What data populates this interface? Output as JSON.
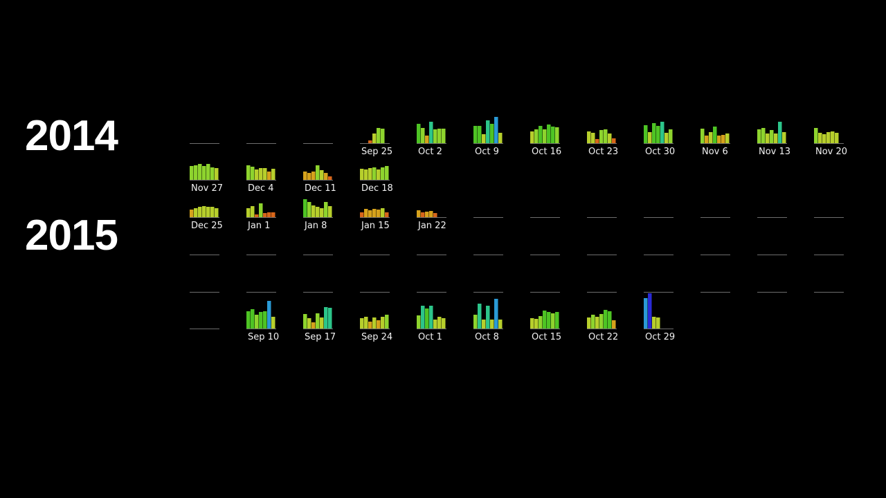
{
  "years": [
    {
      "label": "2014"
    },
    {
      "label": "2015"
    }
  ],
  "chart_data": {
    "type": "bar",
    "description_of_mark": "small multiples — one mini bar chart of daily values per week",
    "colors": {
      "orange": "#d8661a",
      "amber": "#d6a21c",
      "yellow_green": "#b7cf2c",
      "light_green": "#8ed42e",
      "green": "#4ec424",
      "teal": "#2cc58a",
      "sky": "#2a9ad6",
      "blue": "#2a2ad6",
      "baseline": "#6e6e6e"
    },
    "rows": [
      {
        "cells": [
          {
            "label": "",
            "values": []
          },
          {
            "label": "",
            "values": []
          },
          {
            "label": "",
            "values": []
          },
          {
            "label": "Sep 25",
            "values": [
              0,
              0,
              4,
              14,
              22,
              21
            ]
          },
          {
            "label": "Oct 2",
            "values": [
              28,
              22,
              11,
              31,
              20,
              21,
              21
            ]
          },
          {
            "label": "Oct 9",
            "values": [
              25,
              25,
              13,
              33,
              28,
              38,
              15
            ]
          },
          {
            "label": "Oct 16",
            "values": [
              17,
              20,
              25,
              20,
              27,
              24,
              23
            ]
          },
          {
            "label": "Oct 23",
            "values": [
              17,
              15,
              6,
              19,
              20,
              14,
              7
            ]
          },
          {
            "label": "Oct 30",
            "values": [
              26,
              16,
              29,
              25,
              31,
              15,
              20
            ]
          },
          {
            "label": "Nov 6",
            "values": [
              21,
              11,
              16,
              24,
              11,
              12,
              14
            ]
          },
          {
            "label": "Nov 13",
            "values": [
              20,
              22,
              14,
              19,
              14,
              31,
              16
            ]
          },
          {
            "label": "Nov 20",
            "values": [
              22,
              15,
              13,
              16,
              17,
              15,
              0
            ]
          }
        ]
      },
      {
        "cells": [
          {
            "label": "Nov 27",
            "values": [
              20,
              21,
              23,
              20,
              23,
              18,
              17
            ]
          },
          {
            "label": "Dec 4",
            "values": [
              21,
              19,
              15,
              17,
              17,
              12,
              16
            ]
          },
          {
            "label": "Dec 11",
            "values": [
              12,
              10,
              12,
              21,
              14,
              10,
              5
            ]
          },
          {
            "label": "Dec 18",
            "values": [
              16,
              15,
              17,
              18,
              15,
              18,
              20
            ]
          }
        ]
      },
      {
        "cells": [
          {
            "label": "Dec 25",
            "values": [
              11,
              13,
              15,
              16,
              15,
              15,
              13
            ]
          },
          {
            "label": "Jan 1",
            "values": [
              13,
              16,
              4,
              20,
              6,
              7,
              7
            ]
          },
          {
            "label": "Jan 8",
            "values": [
              26,
              22,
              17,
              15,
              13,
              22,
              16
            ]
          },
          {
            "label": "Jan 15",
            "values": [
              7,
              12,
              10,
              12,
              11,
              13,
              7
            ]
          },
          {
            "label": "Jan 22",
            "values": [
              10,
              7,
              8,
              9,
              6,
              0,
              0
            ]
          },
          {
            "label": "",
            "values": []
          },
          {
            "label": "",
            "values": []
          },
          {
            "label": "",
            "values": []
          },
          {
            "label": "",
            "values": []
          },
          {
            "label": "",
            "values": []
          },
          {
            "label": "",
            "values": []
          },
          {
            "label": "",
            "values": []
          }
        ]
      },
      {
        "cells": [
          {
            "label": "",
            "values": []
          },
          {
            "label": "",
            "values": []
          },
          {
            "label": "",
            "values": []
          },
          {
            "label": "",
            "values": []
          },
          {
            "label": "",
            "values": []
          },
          {
            "label": "",
            "values": []
          },
          {
            "label": "",
            "values": []
          },
          {
            "label": "",
            "values": []
          },
          {
            "label": "",
            "values": []
          },
          {
            "label": "",
            "values": []
          },
          {
            "label": "",
            "values": []
          },
          {
            "label": "",
            "values": []
          }
        ]
      },
      {
        "cells": [
          {
            "label": "",
            "values": []
          },
          {
            "label": "",
            "values": []
          },
          {
            "label": "",
            "values": []
          },
          {
            "label": "",
            "values": []
          },
          {
            "label": "",
            "values": []
          },
          {
            "label": "",
            "values": []
          },
          {
            "label": "",
            "values": []
          },
          {
            "label": "",
            "values": []
          },
          {
            "label": "",
            "values": []
          },
          {
            "label": "",
            "values": []
          },
          {
            "label": "",
            "values": []
          },
          {
            "label": "",
            "values": []
          }
        ]
      },
      {
        "cells": [
          {
            "label": "",
            "values": []
          },
          {
            "label": "Sep 10",
            "values": [
              25,
              28,
              20,
              24,
              25,
              40,
              17
            ]
          },
          {
            "label": "Sep 17",
            "values": [
              21,
              15,
              9,
              22,
              16,
              31,
              30
            ]
          },
          {
            "label": "Sep 24",
            "values": [
              15,
              17,
              10,
              16,
              12,
              17,
              20
            ]
          },
          {
            "label": "Oct 1",
            "values": [
              19,
              33,
              29,
              33,
              13,
              17,
              15
            ]
          },
          {
            "label": "Oct 8",
            "values": [
              20,
              36,
              13,
              33,
              13,
              43,
              13
            ]
          },
          {
            "label": "Oct 15",
            "values": [
              15,
              14,
              18,
              26,
              24,
              22,
              24
            ]
          },
          {
            "label": "Oct 22",
            "values": [
              16,
              20,
              17,
              21,
              27,
              25,
              12
            ]
          },
          {
            "label": "Oct 29",
            "values": [
              44,
              51,
              17,
              16,
              0,
              0,
              0
            ]
          }
        ]
      }
    ]
  }
}
